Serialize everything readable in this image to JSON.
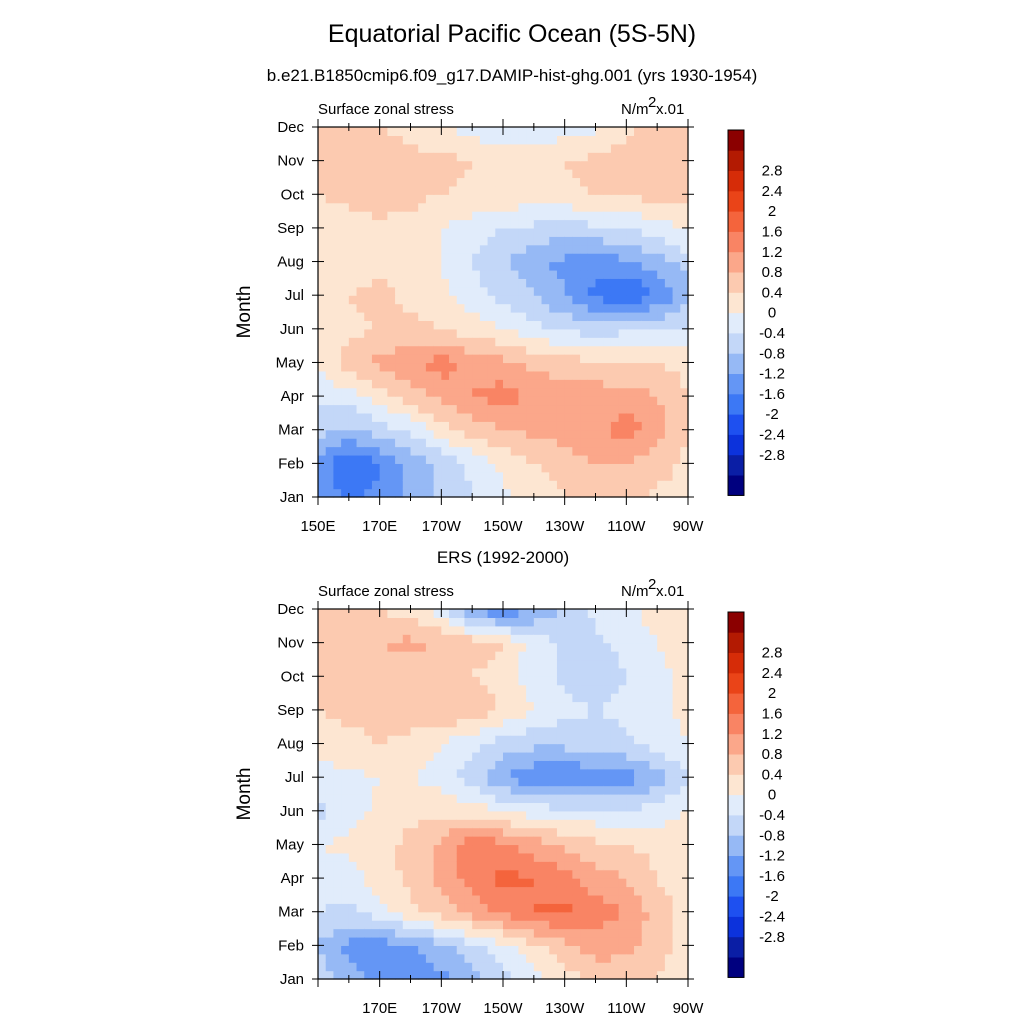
{
  "title": "Equatorial Pacific Ocean (5S-5N)",
  "subtitle": "b.e21.B1850cmip6.f09_g17.DAMIP-hist-ghg.001 (yrs 1930-1954)",
  "panel2_title": "ERS (1992-2000)",
  "colors": [
    "#00007f",
    "#0a1ea5",
    "#0c32dc",
    "#1e50f0",
    "#3c78f5",
    "#6496f5",
    "#96b9f5",
    "#c3d7f8",
    "#e1ecfb",
    "#fde6d2",
    "#fccab0",
    "#fba78a",
    "#f98464",
    "#f4643c",
    "#ea4418",
    "#d62c08",
    "#b31a02",
    "#8b0000"
  ],
  "chart_data": [
    {
      "type": "heatmap",
      "field_name": "Surface zonal stress",
      "units_label": "N/m",
      "units_sup": "2",
      "units_scale": "x.01",
      "ylabel": "Month",
      "xlim": [
        150,
        270
      ],
      "x_ticklabels": [
        "150E",
        "170E",
        "170W",
        "150W",
        "130W",
        "110W",
        "90W"
      ],
      "y_ticklabels": [
        "Jan",
        "Feb",
        "Mar",
        "Apr",
        "May",
        "Jun",
        "Jul",
        "Aug",
        "Sep",
        "Oct",
        "Nov",
        "Dec"
      ],
      "colorbar_levels": [
        "-2.8",
        "-2.4",
        "-2",
        "-1.6",
        "-1.2",
        "-0.8",
        "-0.4",
        "0",
        "0.4",
        "0.8",
        "1.2",
        "1.6",
        "2",
        "2.4",
        "2.8"
      ],
      "x": [
        150,
        160,
        170,
        180,
        190,
        200,
        210,
        220,
        230,
        240,
        250,
        260,
        270
      ],
      "months": [
        "Jan",
        "Feb",
        "Mar",
        "Apr",
        "May",
        "Jun",
        "Jul",
        "Aug",
        "Sep",
        "Oct",
        "Nov",
        "Dec"
      ],
      "values": [
        [
          -1.3,
          -1.7,
          -1.5,
          -1.1,
          -0.7,
          -0.4,
          -0.1,
          0.1,
          0.4,
          0.6,
          0.5,
          0.3,
          0.2
        ],
        [
          -1.3,
          -2.0,
          -1.6,
          -1.1,
          -0.7,
          -0.3,
          0.1,
          0.4,
          0.6,
          0.8,
          0.8,
          0.6,
          0.3
        ],
        [
          -0.6,
          -0.9,
          -0.6,
          -0.3,
          0.2,
          0.6,
          0.8,
          0.9,
          1.0,
          1.1,
          1.4,
          1.0,
          0.4
        ],
        [
          -0.3,
          -0.2,
          0.2,
          0.6,
          0.9,
          1.2,
          1.4,
          1.1,
          1.0,
          1.0,
          1.0,
          0.8,
          0.4
        ],
        [
          0.1,
          0.6,
          0.9,
          1.1,
          1.4,
          1.1,
          0.9,
          0.7,
          0.6,
          0.5,
          0.4,
          0.4,
          0.3
        ],
        [
          0.2,
          0.3,
          0.4,
          0.5,
          0.4,
          0.2,
          0.0,
          -0.3,
          -0.5,
          -0.6,
          -0.5,
          -0.4,
          -0.3
        ],
        [
          0.3,
          0.4,
          0.5,
          0.3,
          0.1,
          -0.2,
          -0.5,
          -0.8,
          -1.2,
          -1.7,
          -2.0,
          -1.6,
          -1.0
        ],
        [
          0.2,
          0.2,
          0.3,
          0.2,
          0.0,
          -0.4,
          -0.8,
          -1.1,
          -1.3,
          -1.4,
          -1.3,
          -1.0,
          -0.6
        ],
        [
          0.1,
          0.2,
          0.3,
          0.3,
          0.0,
          -0.2,
          -0.4,
          -0.5,
          -0.6,
          -0.5,
          -0.4,
          -0.2,
          0.1
        ],
        [
          0.4,
          0.5,
          0.6,
          0.5,
          0.4,
          0.3,
          0.3,
          0.2,
          0.3,
          0.4,
          0.5,
          0.5,
          0.6
        ],
        [
          0.6,
          0.8,
          0.6,
          0.5,
          0.5,
          0.4,
          0.3,
          0.2,
          0.4,
          0.5,
          0.6,
          0.7,
          0.6
        ],
        [
          0.5,
          0.6,
          0.4,
          0.3,
          0.1,
          -0.2,
          -0.3,
          -0.3,
          -0.2,
          -0.1,
          0.3,
          0.5,
          0.5
        ]
      ]
    },
    {
      "type": "heatmap",
      "field_name": "Surface zonal stress",
      "units_label": "N/m",
      "units_sup": "2",
      "units_scale": "x.01",
      "ylabel": "Month",
      "xlim": [
        150,
        270
      ],
      "x_ticklabels": [
        "170E",
        "170W",
        "150W",
        "130W",
        "110W",
        "90W"
      ],
      "y_ticklabels": [
        "Jan",
        "Feb",
        "Mar",
        "Apr",
        "May",
        "Jun",
        "Jul",
        "Aug",
        "Sep",
        "Oct",
        "Nov",
        "Dec"
      ],
      "colorbar_levels": [
        "-2.8",
        "-2.4",
        "-2",
        "-1.6",
        "-1.2",
        "-0.8",
        "-0.4",
        "0",
        "0.4",
        "0.8",
        "1.2",
        "1.6",
        "2",
        "2.4",
        "2.8"
      ],
      "x": [
        150,
        160,
        170,
        180,
        190,
        200,
        210,
        220,
        230,
        240,
        250,
        260,
        270
      ],
      "months": [
        "Jan",
        "Feb",
        "Mar",
        "Apr",
        "May",
        "Jun",
        "Jul",
        "Aug",
        "Sep",
        "Oct",
        "Nov",
        "Dec"
      ],
      "values": [
        [
          -0.6,
          -1.0,
          -1.4,
          -1.6,
          -1.3,
          -1.0,
          -0.6,
          -0.2,
          0.2,
          0.5,
          0.6,
          0.4,
          0.2
        ],
        [
          -0.8,
          -1.3,
          -1.4,
          -1.2,
          -0.9,
          -0.5,
          -0.1,
          0.3,
          0.7,
          1.0,
          0.9,
          0.6,
          0.1
        ],
        [
          -0.4,
          -0.5,
          -0.2,
          0.3,
          0.6,
          1.0,
          1.3,
          1.6,
          1.7,
          1.4,
          1.2,
          0.6,
          0.2
        ],
        [
          -0.2,
          -0.2,
          0.2,
          0.5,
          0.9,
          1.4,
          1.7,
          1.6,
          1.4,
          1.0,
          0.8,
          0.4,
          0.2
        ],
        [
          0.0,
          0.1,
          0.3,
          0.5,
          0.9,
          1.5,
          1.3,
          1.0,
          0.7,
          0.5,
          0.4,
          0.3,
          0.2
        ],
        [
          -0.5,
          -0.2,
          0.1,
          0.3,
          0.3,
          0.2,
          0.0,
          -0.2,
          -0.3,
          -0.3,
          -0.4,
          -0.2,
          0.0
        ],
        [
          -0.2,
          -0.1,
          0.0,
          0.0,
          -0.2,
          -0.6,
          -1.2,
          -1.5,
          -1.6,
          -1.5,
          -1.4,
          -1.0,
          -0.5
        ],
        [
          0.2,
          0.3,
          0.4,
          0.3,
          0.0,
          -0.3,
          -0.6,
          -0.7,
          -0.7,
          -0.6,
          -0.5,
          -0.2,
          0.0
        ],
        [
          0.4,
          0.5,
          0.5,
          0.6,
          0.8,
          0.6,
          0.4,
          0.0,
          -0.3,
          -0.4,
          -0.3,
          -0.1,
          0.1
        ],
        [
          0.4,
          0.5,
          0.6,
          0.5,
          0.5,
          0.4,
          0.2,
          -0.2,
          -0.5,
          -0.6,
          -0.4,
          -0.1,
          0.1
        ],
        [
          0.5,
          0.6,
          0.8,
          0.9,
          0.8,
          0.6,
          0.4,
          -0.2,
          -0.5,
          -0.5,
          -0.3,
          0.0,
          0.2
        ],
        [
          0.4,
          0.5,
          0.4,
          0.2,
          -0.3,
          -1.3,
          -1.6,
          -1.2,
          -0.7,
          -0.3,
          -0.1,
          0.2,
          0.3
        ]
      ]
    }
  ]
}
